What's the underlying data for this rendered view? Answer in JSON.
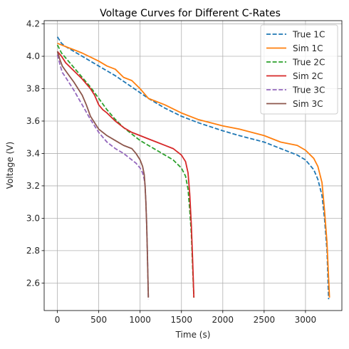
{
  "chart_data": {
    "type": "line",
    "title": "Voltage Curves for Different C-Rates",
    "xlabel": "Time (s)",
    "ylabel": "Voltage (V)",
    "xlim": [
      -160,
      3440
    ],
    "ylim": [
      2.43,
      4.22
    ],
    "xticks": [
      0,
      500,
      1000,
      1500,
      2000,
      2500,
      3000
    ],
    "xtick_labels": [
      "0",
      "500",
      "1000",
      "1500",
      "2000",
      "2500",
      "3000"
    ],
    "yticks": [
      2.6,
      2.8,
      3.0,
      3.2,
      3.4,
      3.6,
      3.8,
      4.0,
      4.2
    ],
    "ytick_labels": [
      "2.6",
      "2.8",
      "3.0",
      "3.2",
      "3.4",
      "3.6",
      "3.8",
      "4.0",
      "4.2"
    ],
    "grid": true,
    "legend_position": "top-right",
    "series": [
      {
        "name": "True 1C",
        "color": "#1f77b4",
        "dash": true,
        "x": [
          0,
          50,
          100,
          200,
          300,
          500,
          700,
          900,
          1100,
          1300,
          1500,
          1700,
          2000,
          2200,
          2500,
          2700,
          2900,
          3000,
          3100,
          3150,
          3200,
          3230,
          3260,
          3280
        ],
        "y": [
          4.12,
          4.08,
          4.06,
          4.03,
          4.0,
          3.94,
          3.88,
          3.81,
          3.74,
          3.68,
          3.63,
          3.59,
          3.54,
          3.51,
          3.47,
          3.43,
          3.39,
          3.36,
          3.3,
          3.24,
          3.14,
          3.0,
          2.8,
          2.5
        ]
      },
      {
        "name": "Sim 1C",
        "color": "#ff7f0e",
        "dash": false,
        "x": [
          0,
          50,
          100,
          200,
          300,
          500,
          600,
          700,
          800,
          900,
          1000,
          1100,
          1300,
          1500,
          1700,
          2000,
          2200,
          2500,
          2700,
          2900,
          3000,
          3100,
          3150,
          3200,
          3230,
          3260,
          3290
        ],
        "y": [
          4.08,
          4.07,
          4.06,
          4.04,
          4.02,
          3.97,
          3.94,
          3.92,
          3.87,
          3.85,
          3.8,
          3.74,
          3.7,
          3.65,
          3.61,
          3.57,
          3.55,
          3.51,
          3.47,
          3.45,
          3.42,
          3.37,
          3.32,
          3.22,
          3.05,
          2.85,
          2.51
        ]
      },
      {
        "name": "True 2C",
        "color": "#2ca02c",
        "dash": true,
        "x": [
          0,
          50,
          100,
          200,
          300,
          400,
          500,
          600,
          700,
          800,
          900,
          1000,
          1100,
          1200,
          1300,
          1400,
          1500,
          1550,
          1580,
          1600,
          1620,
          1635,
          1650
        ],
        "y": [
          4.07,
          4.02,
          3.99,
          3.93,
          3.87,
          3.81,
          3.74,
          3.67,
          3.61,
          3.56,
          3.52,
          3.48,
          3.45,
          3.42,
          3.39,
          3.36,
          3.31,
          3.26,
          3.18,
          3.05,
          2.9,
          2.7,
          2.51
        ]
      },
      {
        "name": "Sim 2C",
        "color": "#d62728",
        "dash": false,
        "x": [
          0,
          50,
          100,
          200,
          300,
          400,
          450,
          500,
          550,
          600,
          700,
          800,
          900,
          1000,
          1100,
          1200,
          1300,
          1400,
          1500,
          1550,
          1580,
          1600,
          1620,
          1635,
          1650
        ],
        "y": [
          4.03,
          4.0,
          3.96,
          3.91,
          3.86,
          3.8,
          3.76,
          3.7,
          3.67,
          3.65,
          3.6,
          3.56,
          3.53,
          3.51,
          3.49,
          3.47,
          3.45,
          3.43,
          3.39,
          3.35,
          3.28,
          3.15,
          2.95,
          2.75,
          2.51
        ]
      },
      {
        "name": "True 3C",
        "color": "#9467bd",
        "dash": true,
        "x": [
          0,
          30,
          60,
          100,
          200,
          300,
          400,
          500,
          600,
          700,
          800,
          900,
          950,
          1000,
          1030,
          1050,
          1060,
          1070,
          1080,
          1090,
          1100
        ],
        "y": [
          4.01,
          3.95,
          3.9,
          3.87,
          3.79,
          3.7,
          3.61,
          3.53,
          3.47,
          3.43,
          3.4,
          3.36,
          3.34,
          3.31,
          3.28,
          3.24,
          3.2,
          3.1,
          2.95,
          2.75,
          2.5
        ]
      },
      {
        "name": "Sim 3C",
        "color": "#8c564b",
        "dash": false,
        "x": [
          0,
          30,
          60,
          100,
          200,
          300,
          350,
          400,
          500,
          600,
          700,
          800,
          900,
          950,
          1000,
          1030,
          1050,
          1060,
          1070,
          1080,
          1090,
          1100
        ],
        "y": [
          4.03,
          3.98,
          3.94,
          3.91,
          3.84,
          3.76,
          3.7,
          3.63,
          3.55,
          3.51,
          3.48,
          3.45,
          3.43,
          3.4,
          3.36,
          3.32,
          3.27,
          3.2,
          3.1,
          2.95,
          2.75,
          2.51
        ]
      }
    ]
  }
}
